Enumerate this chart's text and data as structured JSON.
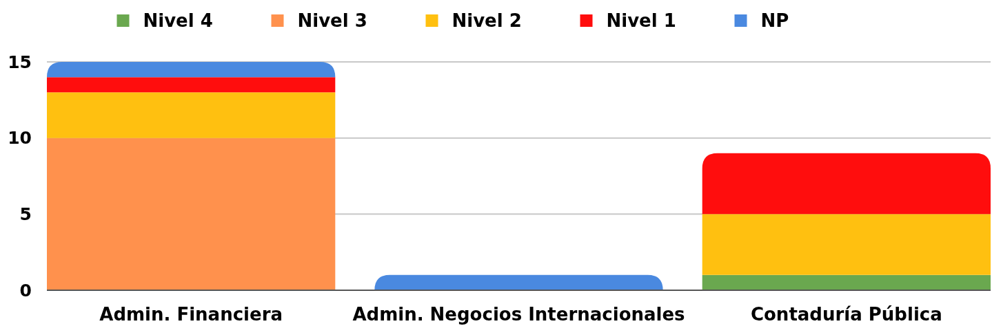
{
  "chart_data": {
    "type": "bar",
    "stacked": true,
    "categories": [
      "Admin. Financiera",
      "Admin. Negocios Internacionales",
      "Contaduría Pública"
    ],
    "series": [
      {
        "name": "Nivel 4",
        "color": "#6aa84f",
        "values": [
          0,
          0,
          1
        ]
      },
      {
        "name": "Nivel 3",
        "color": "#ff914d",
        "values": [
          10,
          0,
          0
        ]
      },
      {
        "name": "Nivel 2",
        "color": "#ffc010",
        "values": [
          3,
          0,
          4
        ]
      },
      {
        "name": "Nivel 1",
        "color": "#ff0d0d",
        "values": [
          1,
          0,
          4
        ]
      },
      {
        "name": "NP",
        "color": "#4a89e0",
        "values": [
          1,
          1,
          0
        ]
      }
    ],
    "ylim": [
      0,
      15
    ],
    "yticks": [
      0,
      5,
      10,
      15
    ],
    "grid": "y",
    "legend": "top"
  }
}
